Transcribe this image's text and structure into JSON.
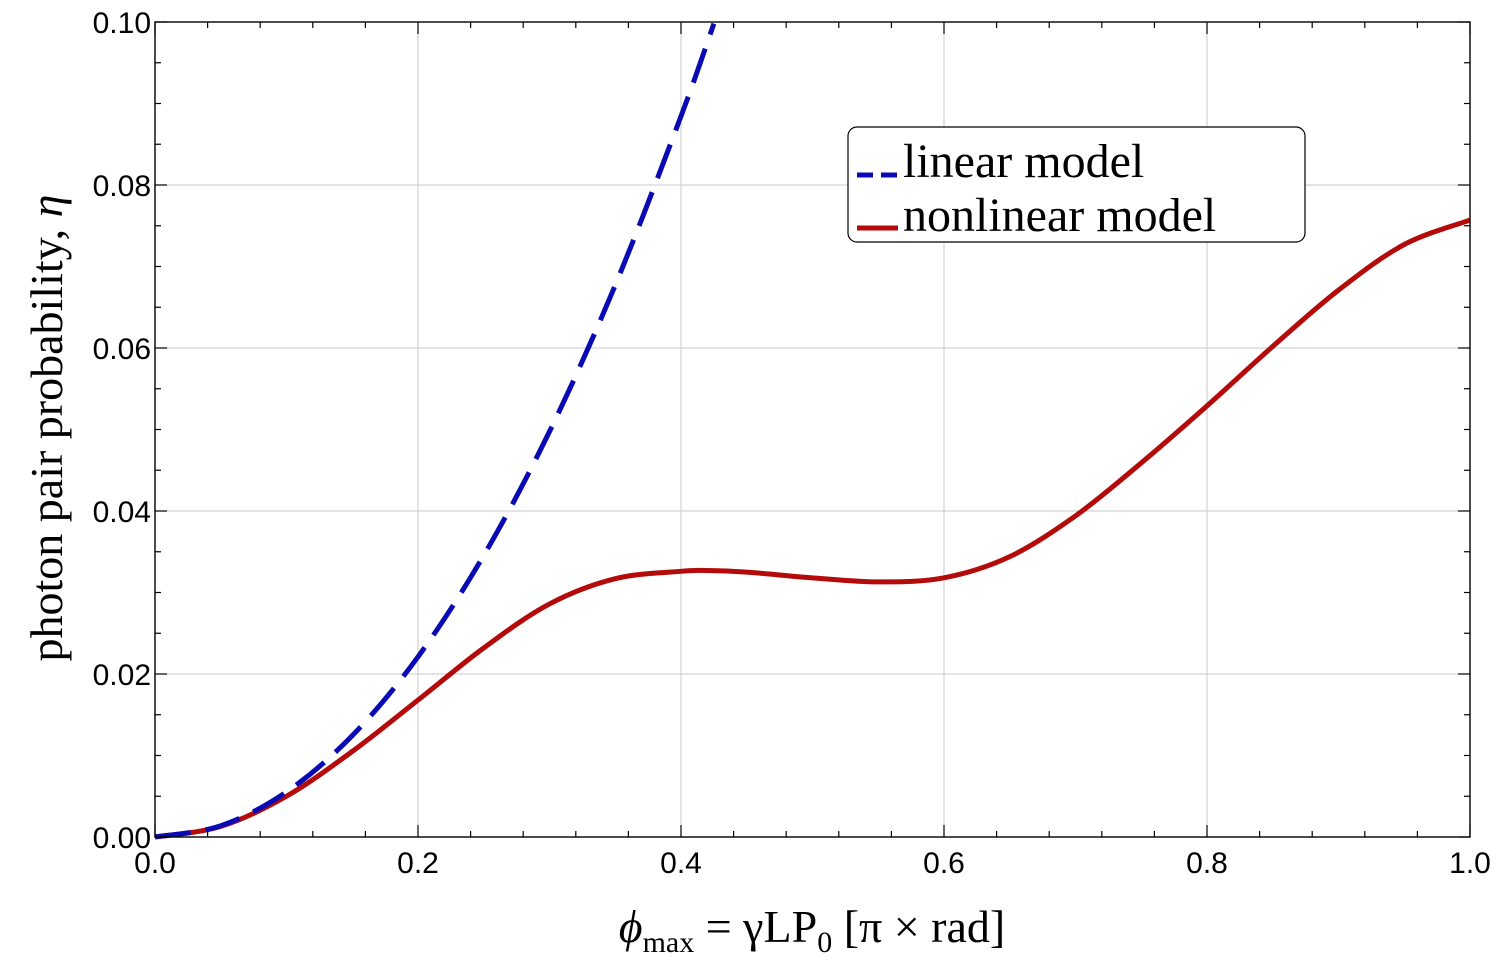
{
  "chart_data": {
    "type": "line",
    "title": "",
    "xlabel": {
      "main": "ϕ",
      "sub1": "max",
      "mid": " = γLP",
      "sub2": "0",
      "tail": " [π × rad]"
    },
    "ylabel": {
      "main": "photon pair probability, ",
      "symbol": "η"
    },
    "xlim": [
      0,
      1
    ],
    "ylim": [
      0,
      0.1
    ],
    "x_ticks": [
      0.0,
      0.2,
      0.4,
      0.6,
      0.8,
      1.0
    ],
    "x_tick_labels": [
      "0.0",
      "0.2",
      "0.4",
      "0.6",
      "0.8",
      "1.0"
    ],
    "y_ticks": [
      0.0,
      0.02,
      0.04,
      0.06,
      0.08,
      0.1
    ],
    "y_tick_labels": [
      "0.00",
      "0.02",
      "0.04",
      "0.06",
      "0.08",
      "0.10"
    ],
    "grid": true,
    "legend_position": "top-right",
    "series": [
      {
        "name": "linear model",
        "color": "#0a0ab4",
        "style": "dashed",
        "x": [
          0.0,
          0.05,
          0.1,
          0.15,
          0.2,
          0.25,
          0.3,
          0.35,
          0.4,
          0.425
        ],
        "y": [
          0.0,
          0.00138,
          0.00553,
          0.01244,
          0.02211,
          0.03455,
          0.04975,
          0.06771,
          0.08844,
          0.0998
        ]
      },
      {
        "name": "nonlinear model",
        "color": "#b40a0a",
        "style": "solid",
        "x": [
          0.0,
          0.05,
          0.1,
          0.15,
          0.2,
          0.25,
          0.3,
          0.35,
          0.4,
          0.42,
          0.45,
          0.5,
          0.55,
          0.6,
          0.65,
          0.7,
          0.75,
          0.8,
          0.85,
          0.9,
          0.95,
          1.0
        ],
        "y": [
          0.0,
          0.0013,
          0.005,
          0.0105,
          0.0168,
          0.0232,
          0.0286,
          0.0317,
          0.0326,
          0.0327,
          0.0325,
          0.0318,
          0.0313,
          0.0318,
          0.0344,
          0.0394,
          0.0459,
          0.0529,
          0.0602,
          0.0671,
          0.0727,
          0.0757
        ]
      }
    ]
  }
}
